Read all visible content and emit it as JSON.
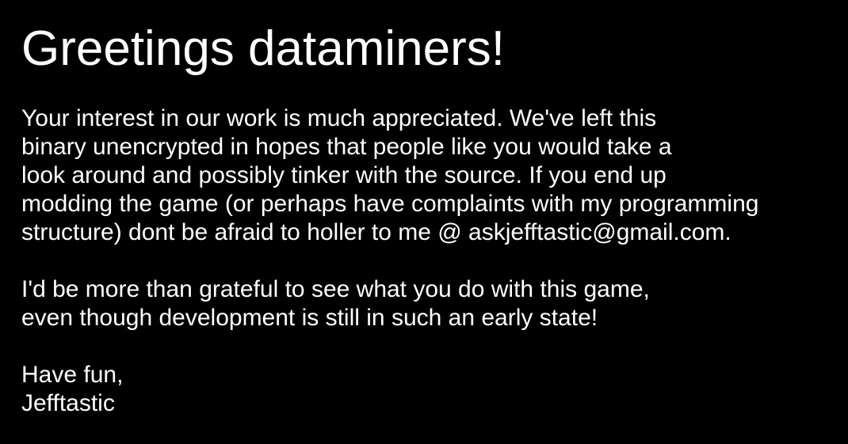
{
  "title": "Greetings dataminers!",
  "paragraphs": [
    {
      "lines": [
        "Your interest in our work is much appreciated. We've left this",
        "binary unencrypted in hopes that people like you would take a",
        "look around and possibly tinker with the source. If you end up",
        "modding the game (or perhaps have complaints with my programming",
        "structure) dont be afraid to holler to me @ askjefftastic@gmail.com."
      ]
    },
    {
      "lines": [
        "I'd be more than grateful to see what you do with this game,",
        "even though development is still in such an early state!"
      ]
    },
    {
      "lines": [
        "Have fun,",
        "Jefftastic"
      ]
    }
  ]
}
